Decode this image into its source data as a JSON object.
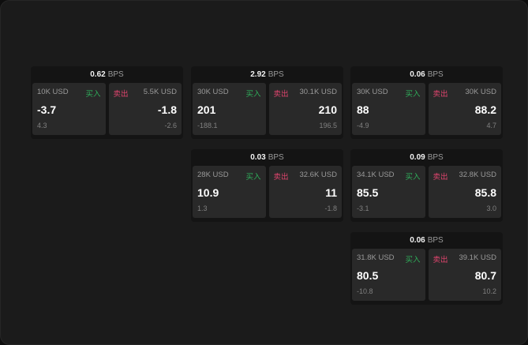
{
  "unit": "BPS",
  "buy_label": "买入",
  "sell_label": "卖出",
  "colors": {
    "buy": "#2fae5a",
    "sell": "#e0456e"
  },
  "cards": [
    {
      "spread": "0.62",
      "bid": {
        "size": "10K USD",
        "price": "-3.7",
        "change": "4.3"
      },
      "ask": {
        "size": "5.5K USD",
        "price": "-1.8",
        "change": "-2.6"
      }
    },
    {
      "spread": "2.92",
      "bid": {
        "size": "30K USD",
        "price": "201",
        "change": "-188.1"
      },
      "ask": {
        "size": "30.1K USD",
        "price": "210",
        "change": "196.5"
      }
    },
    {
      "spread": "0.06",
      "bid": {
        "size": "30K USD",
        "price": "88",
        "change": "-4.9"
      },
      "ask": {
        "size": "30K USD",
        "price": "88.2",
        "change": "4.7"
      }
    },
    {
      "spread": "0.03",
      "bid": {
        "size": "28K USD",
        "price": "10.9",
        "change": "1.3"
      },
      "ask": {
        "size": "32.6K USD",
        "price": "11",
        "change": "-1.8"
      }
    },
    {
      "spread": "0.09",
      "bid": {
        "size": "34.1K USD",
        "price": "85.5",
        "change": "-3.1"
      },
      "ask": {
        "size": "32.8K USD",
        "price": "85.8",
        "change": "3.0"
      }
    },
    {
      "spread": "0.06",
      "bid": {
        "size": "31.8K USD",
        "price": "80.5",
        "change": "-10.8"
      },
      "ask": {
        "size": "39.1K USD",
        "price": "80.7",
        "change": "10.2"
      }
    }
  ]
}
